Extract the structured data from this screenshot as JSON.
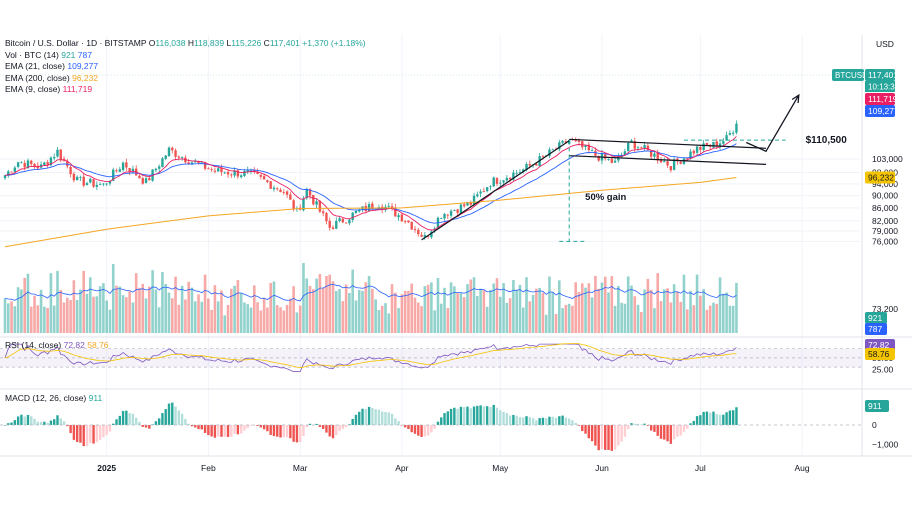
{
  "header": {
    "symbol_line": "Bitcoin / U.S. Dollar · 1D · BITSTAMP",
    "ohlc": [
      {
        "k": "O",
        "v": "116,038"
      },
      {
        "k": "H",
        "v": "118,839"
      },
      {
        "k": "L",
        "v": "115,226"
      },
      {
        "k": "C",
        "v": "117,401"
      }
    ],
    "change": "+1,370 (+1.18%)",
    "currency": "USD"
  },
  "indicators": [
    {
      "label": "Vol · BTC (14)",
      "values": [
        "921",
        "787"
      ],
      "color": "#26a69a"
    },
    {
      "label": "EMA (21, close)",
      "values": [
        "109,277"
      ],
      "color": "#2962ff"
    },
    {
      "label": "EMA (200, close)",
      "values": [
        "96,232"
      ],
      "color": "#f5a623"
    },
    {
      "label": "EMA (9, close)",
      "values": [
        "111,719"
      ],
      "color": "#e91e63"
    }
  ],
  "rsi_legend": {
    "label": "RSI (14, close)",
    "values": [
      "72.82",
      "58.76"
    ]
  },
  "macd_legend": {
    "label": "MACD (12, 26, close)",
    "values": [
      "911"
    ]
  },
  "annotations": {
    "target_label": "$110,500",
    "gain_label": "50% gain"
  },
  "price_badges": [
    {
      "name": "btcusd-badge",
      "label": "BTCUSD",
      "value": "117,401",
      "sub": "10:13:37",
      "color": "#26a69a",
      "price": 117401
    },
    {
      "name": "ema9-badge",
      "value": "111,719",
      "color": "#e91e63",
      "price": 111719
    },
    {
      "name": "ema21-badge",
      "value": "109,277",
      "color": "#2962ff",
      "price": 109277
    },
    {
      "name": "ema200-badge",
      "value": "96,232",
      "color": "#f5c400",
      "price": 96232,
      "dark": true
    }
  ],
  "vol_badges": [
    {
      "value": "921",
      "color": "#26a69a"
    },
    {
      "value": "787",
      "color": "#2962ff"
    }
  ],
  "rsi_badges": [
    {
      "value": "72.82",
      "color": "#7e57c2",
      "v": 72.82
    },
    {
      "value": "58.76",
      "color": "#f5c400",
      "v": 58.76,
      "dark": true
    }
  ],
  "macd_badge": {
    "value": "911",
    "color": "#26a69a",
    "v": 911
  },
  "chart_data": {
    "type": "candlestick",
    "start_date": "2024-12-01",
    "x_axis": {
      "labels": [
        {
          "text": "2025",
          "date": "2025-01-01",
          "bold": true
        },
        {
          "text": "Feb",
          "date": "2025-02-01"
        },
        {
          "text": "Mar",
          "date": "2025-03-01"
        },
        {
          "text": "Apr",
          "date": "2025-04-01"
        },
        {
          "text": "May",
          "date": "2025-05-01"
        },
        {
          "text": "Jun",
          "date": "2025-06-01"
        },
        {
          "text": "Jul",
          "date": "2025-07-01"
        },
        {
          "text": "Aug",
          "date": "2025-08-01"
        }
      ]
    },
    "price_axis": {
      "ticks": [
        76000,
        79000,
        82000,
        86000,
        90000,
        94000,
        98000,
        103000,
        110500
      ],
      "tick_labels": [
        "76,000",
        "79,000",
        "82,000",
        "86,000",
        "90,000",
        "94,000",
        "98,000",
        "103,000",
        "110,500"
      ]
    },
    "rsi_axis": {
      "ticks": [
        25,
        50
      ],
      "tick_labels": [
        "25.00",
        "50.00"
      ],
      "band": [
        30,
        70
      ]
    },
    "macd_axis": {
      "ticks": [
        0,
        -1000
      ],
      "tick_labels": [
        "0",
        "−1,000"
      ]
    },
    "volume_axis": {
      "tick_labels": [
        "73,200",
        "60"
      ]
    },
    "price_path": [
      {
        "date": "2024-12-01",
        "price": 97000
      },
      {
        "date": "2024-12-05",
        "price": 102000
      },
      {
        "date": "2024-12-12",
        "price": 100000
      },
      {
        "date": "2024-12-17",
        "price": 106000
      },
      {
        "date": "2024-12-23",
        "price": 95000
      },
      {
        "date": "2024-12-31",
        "price": 93500
      },
      {
        "date": "2025-01-06",
        "price": 101500
      },
      {
        "date": "2025-01-13",
        "price": 94500
      },
      {
        "date": "2025-01-20",
        "price": 106500
      },
      {
        "date": "2025-01-27",
        "price": 102000
      },
      {
        "date": "2025-02-03",
        "price": 98500
      },
      {
        "date": "2025-02-14",
        "price": 97500
      },
      {
        "date": "2025-02-24",
        "price": 91500
      },
      {
        "date": "2025-02-28",
        "price": 84500
      },
      {
        "date": "2025-03-03",
        "price": 92000
      },
      {
        "date": "2025-03-10",
        "price": 80000
      },
      {
        "date": "2025-03-18",
        "price": 84500
      },
      {
        "date": "2025-03-25",
        "price": 87500
      },
      {
        "date": "2025-04-02",
        "price": 82500
      },
      {
        "date": "2025-04-08",
        "price": 77000
      },
      {
        "date": "2025-04-13",
        "price": 84000
      },
      {
        "date": "2025-04-22",
        "price": 87500
      },
      {
        "date": "2025-04-28",
        "price": 94500
      },
      {
        "date": "2025-05-08",
        "price": 99000
      },
      {
        "date": "2025-05-14",
        "price": 103500
      },
      {
        "date": "2025-05-22",
        "price": 110500
      },
      {
        "date": "2025-05-30",
        "price": 104500
      },
      {
        "date": "2025-06-05",
        "price": 101500
      },
      {
        "date": "2025-06-10",
        "price": 109500
      },
      {
        "date": "2025-06-17",
        "price": 104500
      },
      {
        "date": "2025-06-22",
        "price": 100500
      },
      {
        "date": "2025-06-30",
        "price": 107000
      },
      {
        "date": "2025-07-05",
        "price": 108500
      },
      {
        "date": "2025-07-09",
        "price": 111000
      },
      {
        "date": "2025-07-12",
        "price": 117401
      }
    ],
    "ema200_path": [
      {
        "date": "2024-12-01",
        "price": 74500
      },
      {
        "date": "2025-01-01",
        "price": 79500
      },
      {
        "date": "2025-02-01",
        "price": 83500
      },
      {
        "date": "2025-03-01",
        "price": 85800
      },
      {
        "date": "2025-04-01",
        "price": 86000
      },
      {
        "date": "2025-05-01",
        "price": 88500
      },
      {
        "date": "2025-06-01",
        "price": 91800
      },
      {
        "date": "2025-07-01",
        "price": 94500
      },
      {
        "date": "2025-07-12",
        "price": 96232
      }
    ],
    "drawings": {
      "uptrend": [
        {
          "date": "2025-04-07",
          "price": 76400
        },
        {
          "date": "2025-05-22",
          "price": 110200
        }
      ],
      "channel_upper": [
        {
          "date": "2025-05-22",
          "price": 110800
        },
        {
          "date": "2025-07-21",
          "price": 107200
        }
      ],
      "channel_lower": [
        {
          "date": "2025-05-22",
          "price": 104300
        },
        {
          "date": "2025-07-21",
          "price": 101000
        }
      ],
      "measure_vertical": [
        {
          "date": "2025-05-22",
          "price": 107500
        },
        {
          "date": "2025-05-22",
          "price": 76000
        }
      ],
      "measure_base": [
        {
          "date": "2025-05-19",
          "price": 76000
        },
        {
          "date": "2025-05-27",
          "price": 76000
        }
      ],
      "target_line": [
        {
          "date": "2025-06-26",
          "price": 110500
        },
        {
          "date": "2025-07-27",
          "price": 110500
        }
      ],
      "arrow": [
        {
          "date": "2025-07-15",
          "price": 109500
        },
        {
          "date": "2025-07-21",
          "price": 106000
        },
        {
          "date": "2025-07-31",
          "price": 130500
        }
      ]
    }
  }
}
